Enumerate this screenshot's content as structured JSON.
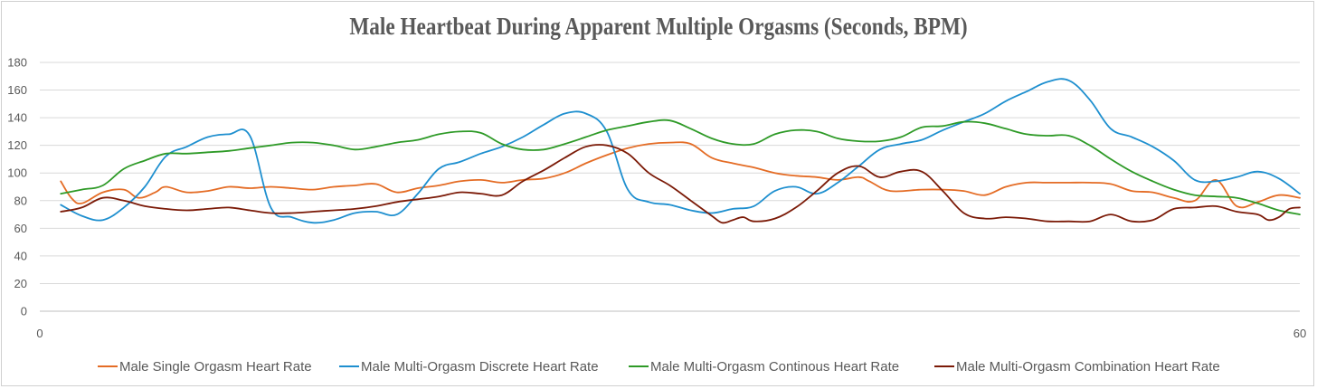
{
  "chart_data": {
    "type": "line",
    "title": "Male Heartbeat During Apparent Multiple Orgasms (Seconds, BPM)",
    "xlabel": "",
    "ylabel": "",
    "xlim": [
      0,
      60
    ],
    "ylim": [
      0,
      180
    ],
    "x_ticks": [
      "0",
      "60"
    ],
    "y_ticks": [
      "0",
      "20",
      "40",
      "60",
      "80",
      "100",
      "120",
      "140",
      "160",
      "180"
    ],
    "grid": "horizontal",
    "legend_position": "bottom",
    "series": [
      {
        "name": "Male Single Orgasm Heart Rate",
        "color": "#E46C25",
        "points": [
          [
            1,
            94
          ],
          [
            1.5,
            82
          ],
          [
            2,
            78
          ],
          [
            3,
            86
          ],
          [
            4,
            88
          ],
          [
            4.7,
            82
          ],
          [
            5.5,
            86
          ],
          [
            6,
            90
          ],
          [
            7,
            86
          ],
          [
            8,
            87
          ],
          [
            9,
            90
          ],
          [
            10,
            89
          ],
          [
            11,
            90
          ],
          [
            12,
            89
          ],
          [
            13,
            88
          ],
          [
            14,
            90
          ],
          [
            15,
            91
          ],
          [
            16,
            92
          ],
          [
            17,
            86
          ],
          [
            18,
            89
          ],
          [
            19,
            91
          ],
          [
            20,
            94
          ],
          [
            21,
            95
          ],
          [
            22,
            93
          ],
          [
            23,
            95
          ],
          [
            24,
            96
          ],
          [
            25,
            100
          ],
          [
            26,
            107
          ],
          [
            27,
            113
          ],
          [
            28,
            118
          ],
          [
            29,
            121
          ],
          [
            30,
            122
          ],
          [
            31,
            121
          ],
          [
            32,
            111
          ],
          [
            33,
            107
          ],
          [
            34,
            104
          ],
          [
            35,
            100
          ],
          [
            36,
            98
          ],
          [
            37,
            97
          ],
          [
            38,
            95
          ],
          [
            39,
            97
          ],
          [
            39.5,
            94
          ],
          [
            40.5,
            87
          ],
          [
            42,
            88
          ],
          [
            43,
            88
          ],
          [
            44,
            87
          ],
          [
            45,
            84
          ],
          [
            46,
            90
          ],
          [
            47,
            93
          ],
          [
            48,
            93
          ],
          [
            49,
            93
          ],
          [
            50,
            93
          ],
          [
            51,
            92
          ],
          [
            52,
            87
          ],
          [
            53,
            86
          ],
          [
            54,
            82
          ],
          [
            55,
            80
          ],
          [
            56,
            95
          ],
          [
            57,
            76
          ],
          [
            58,
            79
          ],
          [
            59,
            84
          ],
          [
            60,
            82
          ]
        ]
      },
      {
        "name": "Male Multi-Orgasm Discrete Heart Rate",
        "color": "#1E8FCF",
        "points": [
          [
            1,
            77
          ],
          [
            2,
            69
          ],
          [
            3,
            66
          ],
          [
            4,
            75
          ],
          [
            5,
            90
          ],
          [
            6,
            112
          ],
          [
            7,
            119
          ],
          [
            8,
            126
          ],
          [
            9,
            128
          ],
          [
            10,
            127
          ],
          [
            11,
            75
          ],
          [
            12,
            68
          ],
          [
            13,
            64
          ],
          [
            14,
            66
          ],
          [
            15,
            71
          ],
          [
            16,
            72
          ],
          [
            17,
            70
          ],
          [
            18,
            85
          ],
          [
            19,
            103
          ],
          [
            20,
            108
          ],
          [
            21,
            114
          ],
          [
            22,
            119
          ],
          [
            23,
            126
          ],
          [
            24,
            135
          ],
          [
            25,
            143
          ],
          [
            26,
            143
          ],
          [
            27,
            130
          ],
          [
            28,
            88
          ],
          [
            29,
            79
          ],
          [
            30,
            77
          ],
          [
            31,
            73
          ],
          [
            32,
            71
          ],
          [
            33,
            74
          ],
          [
            34,
            76
          ],
          [
            35,
            87
          ],
          [
            36,
            90
          ],
          [
            37,
            85
          ],
          [
            38,
            93
          ],
          [
            39,
            105
          ],
          [
            40,
            117
          ],
          [
            41,
            121
          ],
          [
            42,
            124
          ],
          [
            43,
            131
          ],
          [
            44,
            137
          ],
          [
            45,
            143
          ],
          [
            46,
            152
          ],
          [
            47,
            159
          ],
          [
            48,
            166
          ],
          [
            49,
            167
          ],
          [
            50,
            153
          ],
          [
            51,
            132
          ],
          [
            52,
            126
          ],
          [
            53,
            119
          ],
          [
            54,
            109
          ],
          [
            55,
            95
          ],
          [
            56,
            94
          ],
          [
            57,
            97
          ],
          [
            58,
            101
          ],
          [
            59,
            96
          ],
          [
            60,
            85
          ]
        ]
      },
      {
        "name": "Male Multi-Orgasm Continous Heart Rate",
        "color": "#2E9A27",
        "points": [
          [
            1,
            85
          ],
          [
            2,
            88
          ],
          [
            3,
            91
          ],
          [
            4,
            103
          ],
          [
            5,
            109
          ],
          [
            6,
            114
          ],
          [
            7,
            114
          ],
          [
            8,
            115
          ],
          [
            9,
            116
          ],
          [
            10,
            118
          ],
          [
            11,
            120
          ],
          [
            12,
            122
          ],
          [
            13,
            122
          ],
          [
            14,
            120
          ],
          [
            15,
            117
          ],
          [
            16,
            119
          ],
          [
            17,
            122
          ],
          [
            18,
            124
          ],
          [
            19,
            128
          ],
          [
            20,
            130
          ],
          [
            21,
            129
          ],
          [
            22,
            121
          ],
          [
            23,
            117
          ],
          [
            24,
            117
          ],
          [
            25,
            121
          ],
          [
            26,
            126
          ],
          [
            27,
            131
          ],
          [
            28,
            134
          ],
          [
            29,
            137
          ],
          [
            30,
            138
          ],
          [
            31,
            132
          ],
          [
            32,
            125
          ],
          [
            33,
            121
          ],
          [
            34,
            121
          ],
          [
            35,
            128
          ],
          [
            36,
            131
          ],
          [
            37,
            130
          ],
          [
            38,
            125
          ],
          [
            39,
            123
          ],
          [
            40,
            123
          ],
          [
            41,
            126
          ],
          [
            42,
            133
          ],
          [
            43,
            134
          ],
          [
            44,
            137
          ],
          [
            45,
            136
          ],
          [
            46,
            132
          ],
          [
            47,
            128
          ],
          [
            48,
            127
          ],
          [
            49,
            127
          ],
          [
            50,
            120
          ],
          [
            51,
            110
          ],
          [
            52,
            101
          ],
          [
            53,
            94
          ],
          [
            54,
            88
          ],
          [
            55,
            84
          ],
          [
            56,
            83
          ],
          [
            57,
            82
          ],
          [
            58,
            78
          ],
          [
            59,
            73
          ],
          [
            60,
            70
          ]
        ]
      },
      {
        "name": "Male Multi-Orgasm Combination Heart Rate",
        "color": "#7B1A07",
        "points": [
          [
            1,
            72
          ],
          [
            2,
            75
          ],
          [
            3,
            82
          ],
          [
            4,
            80
          ],
          [
            5,
            76
          ],
          [
            6,
            74
          ],
          [
            7,
            73
          ],
          [
            8,
            74
          ],
          [
            9,
            75
          ],
          [
            10,
            73
          ],
          [
            11,
            71
          ],
          [
            12,
            71
          ],
          [
            13,
            72
          ],
          [
            14,
            73
          ],
          [
            15,
            74
          ],
          [
            16,
            76
          ],
          [
            17,
            79
          ],
          [
            18,
            81
          ],
          [
            19,
            83
          ],
          [
            20,
            86
          ],
          [
            21,
            85
          ],
          [
            22,
            84
          ],
          [
            23,
            94
          ],
          [
            24,
            102
          ],
          [
            25,
            111
          ],
          [
            26,
            119
          ],
          [
            27,
            120
          ],
          [
            28,
            114
          ],
          [
            29,
            100
          ],
          [
            30,
            91
          ],
          [
            31,
            80
          ],
          [
            32,
            69
          ],
          [
            32.5,
            64
          ],
          [
            33,
            66
          ],
          [
            33.5,
            68
          ],
          [
            34,
            65
          ],
          [
            35,
            67
          ],
          [
            36,
            75
          ],
          [
            37,
            87
          ],
          [
            38,
            100
          ],
          [
            39,
            105
          ],
          [
            40,
            97
          ],
          [
            41,
            101
          ],
          [
            42,
            101
          ],
          [
            43,
            87
          ],
          [
            44,
            71
          ],
          [
            45,
            67
          ],
          [
            46,
            68
          ],
          [
            47,
            67
          ],
          [
            48,
            65
          ],
          [
            49,
            65
          ],
          [
            50,
            65
          ],
          [
            51,
            70
          ],
          [
            52,
            65
          ],
          [
            53,
            66
          ],
          [
            54,
            74
          ],
          [
            55,
            75
          ],
          [
            56,
            76
          ],
          [
            57,
            72
          ],
          [
            58,
            70
          ],
          [
            58.5,
            66
          ],
          [
            59,
            68
          ],
          [
            59.5,
            74
          ],
          [
            60,
            75
          ]
        ]
      }
    ]
  }
}
